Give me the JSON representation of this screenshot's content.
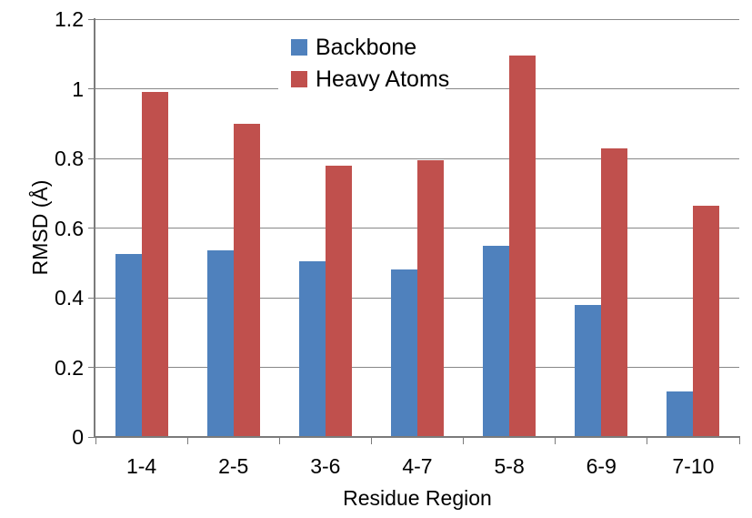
{
  "chart_data": {
    "type": "bar",
    "title": "",
    "xlabel": "Residue Region",
    "ylabel": "RMSD (Å)",
    "categories": [
      "1-4",
      "2-5",
      "3-6",
      "4-7",
      "5-8",
      "6-9",
      "7-10"
    ],
    "series": [
      {
        "name": "Backbone",
        "color": "#4F81BD",
        "values": [
          0.525,
          0.535,
          0.505,
          0.48,
          0.55,
          0.38,
          0.13
        ]
      },
      {
        "name": "Heavy Atoms",
        "color": "#C0504D",
        "values": [
          0.99,
          0.9,
          0.78,
          0.795,
          1.095,
          0.83,
          0.665
        ]
      }
    ],
    "ylim": [
      0,
      1.2
    ],
    "ytick_step": 0.2,
    "ytick_labels": [
      "0",
      "0.2",
      "0.4",
      "0.6",
      "0.8",
      "1",
      "1.2"
    ],
    "grid": true,
    "legend_position": "top-center"
  },
  "colors": {
    "background": "#FFFFFF",
    "gridline": "#878787",
    "axis": "#7B7B7B",
    "text": "#000000"
  }
}
